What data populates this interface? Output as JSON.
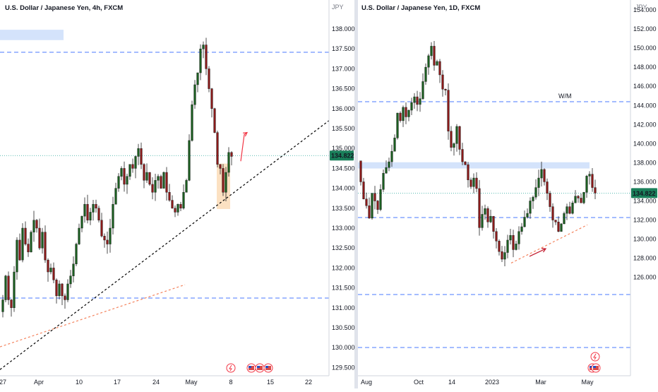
{
  "chart_data": [
    {
      "type": "candlestick",
      "title": "U.S. Dollar / Japanese Yen, 4h, FXCM",
      "currency": "JPY",
      "ylim": [
        129.3,
        138.3
      ],
      "y_ticks": [
        "138.000",
        "137.500",
        "137.000",
        "136.500",
        "136.000",
        "135.500",
        "135.000",
        "134.500",
        "134.000",
        "133.500",
        "133.000",
        "132.500",
        "132.000",
        "131.500",
        "131.000",
        "130.500",
        "130.000",
        "129.500"
      ],
      "x_ticks": [
        "27",
        "Apr",
        "10",
        "17",
        "24",
        "May",
        "8",
        "15",
        "22"
      ],
      "last_price": "134.822",
      "price_line": 134.822,
      "h_levels": [
        137.43,
        131.22
      ],
      "close_path": [
        [
          0,
          130.9
        ],
        [
          4,
          131.2
        ],
        [
          8,
          131.8
        ],
        [
          12,
          131.2
        ],
        [
          16,
          131.0
        ],
        [
          20,
          131.9
        ],
        [
          24,
          132.7
        ],
        [
          28,
          132.2
        ],
        [
          32,
          133.0
        ],
        [
          36,
          132.6
        ],
        [
          40,
          132.4
        ],
        [
          44,
          132.9
        ],
        [
          48,
          133.2
        ],
        [
          52,
          133.0
        ],
        [
          56,
          132.5
        ],
        [
          60,
          132.9
        ],
        [
          64,
          132.2
        ],
        [
          68,
          131.9
        ],
        [
          72,
          132.0
        ],
        [
          76,
          131.7
        ],
        [
          80,
          131.3
        ],
        [
          84,
          131.6
        ],
        [
          88,
          131.3
        ],
        [
          92,
          131.2
        ],
        [
          96,
          131.6
        ],
        [
          100,
          131.8
        ],
        [
          104,
          132.1
        ],
        [
          108,
          132.6
        ],
        [
          112,
          133.0
        ],
        [
          116,
          133.3
        ],
        [
          120,
          133.6
        ],
        [
          124,
          133.2
        ],
        [
          128,
          133.4
        ],
        [
          132,
          133.6
        ],
        [
          136,
          133.5
        ],
        [
          140,
          133.2
        ],
        [
          144,
          132.8
        ],
        [
          148,
          132.7
        ],
        [
          152,
          132.6
        ],
        [
          156,
          133.0
        ],
        [
          160,
          133.6
        ],
        [
          164,
          134.0
        ],
        [
          168,
          134.3
        ],
        [
          172,
          134.5
        ],
        [
          176,
          134.1
        ],
        [
          180,
          134.3
        ],
        [
          184,
          134.6
        ],
        [
          188,
          134.5
        ],
        [
          192,
          134.8
        ],
        [
          196,
          135.0
        ],
        [
          200,
          134.6
        ],
        [
          204,
          134.2
        ],
        [
          208,
          134.4
        ],
        [
          212,
          134.1
        ],
        [
          216,
          133.9
        ],
        [
          220,
          134.2
        ],
        [
          224,
          134.3
        ],
        [
          228,
          134.0
        ],
        [
          232,
          134.4
        ],
        [
          236,
          133.9
        ],
        [
          240,
          133.7
        ],
        [
          244,
          133.5
        ],
        [
          248,
          133.4
        ],
        [
          252,
          133.6
        ],
        [
          256,
          133.5
        ],
        [
          260,
          133.9
        ],
        [
          264,
          134.2
        ],
        [
          268,
          135.2
        ],
        [
          272,
          136.1
        ],
        [
          276,
          136.6
        ],
        [
          280,
          136.9
        ],
        [
          284,
          137.5
        ],
        [
          288,
          137.6
        ],
        [
          292,
          137.0
        ],
        [
          296,
          136.5
        ],
        [
          300,
          136.0
        ],
        [
          304,
          135.4
        ],
        [
          308,
          134.6
        ],
        [
          312,
          134.5
        ],
        [
          316,
          133.9
        ],
        [
          320,
          134.4
        ],
        [
          324,
          134.9
        ],
        [
          328,
          134.8
        ]
      ],
      "highlight_box": {
        "x": [
          307,
          326
        ],
        "y": [
          133.48,
          134.62
        ]
      },
      "trendlines": [
        {
          "x": [
            0,
            466
          ],
          "y": [
            129.45,
            135.7
          ],
          "color": "#000000"
        },
        {
          "x": [
            0,
            262
          ],
          "y": [
            130.02,
            131.58
          ],
          "color": "#f4825c"
        }
      ],
      "arrows": [
        {
          "x": [
            341,
            346,
            350
          ],
          "y": [
            134.68,
            135.35,
            135.4
          ],
          "color": "#f23645"
        }
      ],
      "zones": [
        {
          "x": [
            0,
            90
          ],
          "y": [
            137.72,
            137.98
          ],
          "color": "#cfe0fb"
        }
      ],
      "icons": [
        "lightning-icon",
        "us-flag-icon",
        "us-flag-icon",
        "us-flag-icon"
      ]
    },
    {
      "type": "candlestick",
      "title": "U.S. Dollar / Japanese Yen, 1D, FXCM",
      "currency": "JPY",
      "ylim": [
        125.0,
        154.5
      ],
      "y_ticks": [
        "154.000",
        "152.000",
        "150.000",
        "148.000",
        "146.000",
        "144.000",
        "142.000",
        "140.000",
        "138.000",
        "136.000",
        "134.000",
        "132.000",
        "130.000",
        "128.000",
        "126.000"
      ],
      "x_ticks": [
        "Aug",
        "Oct",
        "14",
        "2023",
        "Mar",
        "May"
      ],
      "last_price": "134.822",
      "price_line": 134.822,
      "h_levels": [
        146.8,
        137.4,
        131.3,
        126.9
      ],
      "h_level_labels": [
        "W/M"
      ],
      "close_path": [
        [
          0,
          138.2
        ],
        [
          4,
          136.0
        ],
        [
          8,
          134.2
        ],
        [
          12,
          133.5
        ],
        [
          16,
          132.2
        ],
        [
          20,
          134.8
        ],
        [
          24,
          134.0
        ],
        [
          28,
          133.1
        ],
        [
          32,
          135.2
        ],
        [
          36,
          136.9
        ],
        [
          40,
          137.5
        ],
        [
          44,
          138.1
        ],
        [
          48,
          139.2
        ],
        [
          52,
          140.6
        ],
        [
          56,
          143.2
        ],
        [
          60,
          142.4
        ],
        [
          64,
          143.8
        ],
        [
          68,
          142.8
        ],
        [
          72,
          143.5
        ],
        [
          76,
          144.3
        ],
        [
          80,
          144.9
        ],
        [
          84,
          144.1
        ],
        [
          88,
          144.7
        ],
        [
          92,
          146.5
        ],
        [
          96,
          148.0
        ],
        [
          100,
          149.2
        ],
        [
          104,
          150.2
        ],
        [
          108,
          148.2
        ],
        [
          112,
          148.6
        ],
        [
          116,
          147.2
        ],
        [
          120,
          145.7
        ],
        [
          124,
          145.6
        ],
        [
          128,
          141.3
        ],
        [
          132,
          139.6
        ],
        [
          136,
          140.0
        ],
        [
          140,
          141.8
        ],
        [
          144,
          139.4
        ],
        [
          148,
          138.1
        ],
        [
          152,
          137.8
        ],
        [
          156,
          136.2
        ],
        [
          160,
          135.5
        ],
        [
          164,
          136.4
        ],
        [
          168,
          135.3
        ],
        [
          172,
          131.2
        ],
        [
          176,
          132.6
        ],
        [
          180,
          133.2
        ],
        [
          184,
          131.8
        ],
        [
          188,
          132.4
        ],
        [
          192,
          130.8
        ],
        [
          196,
          129.8
        ],
        [
          200,
          128.7
        ],
        [
          204,
          127.9
        ],
        [
          208,
          128.6
        ],
        [
          212,
          129.9
        ],
        [
          216,
          130.4
        ],
        [
          220,
          128.9
        ],
        [
          224,
          129.5
        ],
        [
          228,
          130.8
        ],
        [
          232,
          131.3
        ],
        [
          236,
          132.3
        ],
        [
          240,
          132.7
        ],
        [
          244,
          134.0
        ],
        [
          248,
          134.4
        ],
        [
          252,
          135.4
        ],
        [
          256,
          136.4
        ],
        [
          260,
          137.3
        ],
        [
          264,
          136.0
        ],
        [
          268,
          134.8
        ],
        [
          272,
          133.4
        ],
        [
          276,
          132.0
        ],
        [
          280,
          131.8
        ],
        [
          284,
          130.8
        ],
        [
          288,
          131.6
        ],
        [
          292,
          132.7
        ],
        [
          296,
          133.4
        ],
        [
          300,
          132.7
        ],
        [
          304,
          133.8
        ],
        [
          308,
          134.5
        ],
        [
          312,
          134.3
        ],
        [
          316,
          133.8
        ],
        [
          320,
          134.9
        ],
        [
          324,
          136.6
        ],
        [
          328,
          136.8
        ],
        [
          332,
          135.4
        ],
        [
          336,
          134.82
        ]
      ],
      "trendlines": [
        {
          "x": [
            724,
            832
          ],
          "y": [
            127.5,
            131.5
          ],
          "color": "#f4825c"
        }
      ],
      "arrows": [
        {
          "x": [
            750,
            773
          ],
          "y": [
            128.2,
            129.0
          ],
          "color": "#c2182b"
        }
      ],
      "zones": [
        {
          "x": [
            507,
            835
          ],
          "y": [
            137.4,
            138.05
          ],
          "color": "#cfe0fb"
        }
      ],
      "icons": [
        "lightning-icon",
        "us-flag-icon",
        "us-flag-icon"
      ]
    }
  ]
}
